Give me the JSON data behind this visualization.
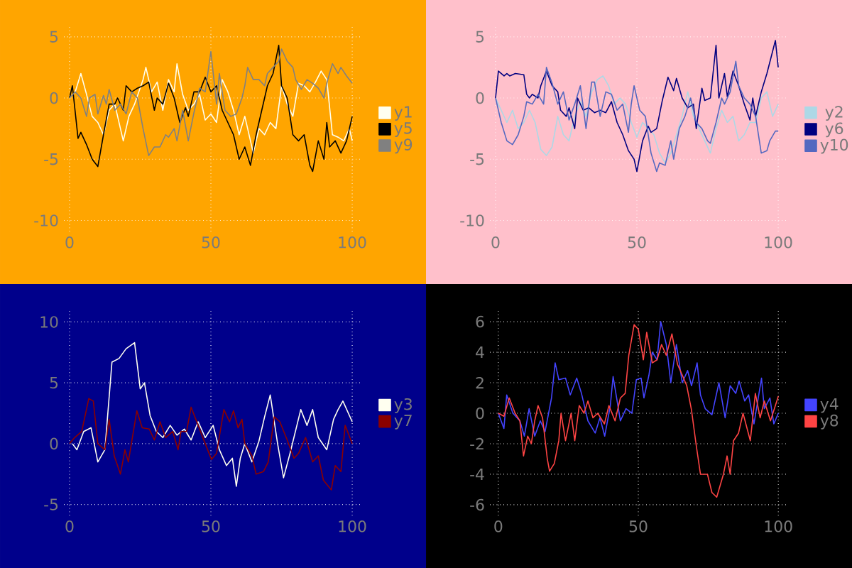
{
  "chart_data": [
    {
      "type": "line",
      "xlim": [
        -2,
        103.5
      ],
      "ylim": [
        -10.9,
        5.8
      ],
      "xticks": [
        0,
        50,
        100
      ],
      "yticks": [
        -10,
        -5,
        0,
        5
      ],
      "grid": true,
      "legend": "right",
      "series": [
        {
          "name": "y1",
          "color": "#fffff0",
          "x": [
            0,
            2,
            4,
            6,
            8,
            10,
            12,
            14,
            16,
            19,
            21,
            23,
            26,
            27,
            29,
            31,
            33,
            35,
            37,
            38,
            40,
            42,
            44,
            46,
            48,
            50,
            52,
            54,
            56,
            58,
            60,
            62,
            65,
            67,
            69,
            71,
            73,
            75,
            77,
            79,
            81,
            83,
            85,
            87,
            89,
            91,
            93,
            95,
            97,
            99,
            100
          ],
          "values": [
            0,
            0.5,
            2,
            0.3,
            -1.5,
            -2,
            -3,
            -1,
            -0.5,
            -3.5,
            -1.5,
            -0.5,
            1.5,
            2.5,
            0.5,
            1.3,
            -1,
            1.5,
            0.5,
            2.8,
            0.3,
            -1,
            -0.5,
            0.3,
            -1.8,
            -1.3,
            -2,
            1.5,
            0.5,
            -1,
            -3,
            -1.5,
            -4.5,
            -2.5,
            -3,
            -2,
            -2.5,
            1,
            -0.5,
            -1.5,
            1.2,
            1,
            0.5,
            1.3,
            2.2,
            1.5,
            -3,
            -3.2,
            -3.5,
            -2.5,
            -3.5
          ]
        },
        {
          "name": "y5",
          "color": "#000000",
          "x": [
            0,
            1,
            3,
            4,
            6,
            8,
            10,
            12,
            14,
            16,
            17,
            19,
            20,
            22,
            24,
            26,
            28,
            30,
            31,
            33,
            35,
            37,
            39,
            41,
            42,
            44,
            46,
            48,
            50,
            52,
            54,
            56,
            58,
            60,
            62,
            64,
            66,
            68,
            70,
            72,
            74,
            75,
            77,
            79,
            81,
            83,
            85,
            86,
            88,
            90,
            91,
            92,
            94,
            96,
            98,
            100
          ],
          "values": [
            0,
            1,
            -3.3,
            -2.8,
            -3.8,
            -5,
            -5.6,
            -3,
            -0.5,
            -0.5,
            0,
            -1,
            1,
            0.5,
            0.8,
            1,
            1.3,
            -1,
            0,
            -0.5,
            1.2,
            0,
            -2,
            -0.8,
            -1.5,
            0.5,
            0.5,
            1.7,
            0.5,
            1,
            -1,
            -2,
            -3,
            -5,
            -4,
            -5.5,
            -3,
            -1,
            1,
            2,
            4.3,
            1,
            0,
            -3,
            -3.5,
            -3,
            -5.5,
            -6,
            -3.5,
            -5,
            -2,
            -4,
            -3.5,
            -4.5,
            -3.5,
            -1.5
          ]
        },
        {
          "name": "y9",
          "color": "#808080",
          "x": [
            0,
            2,
            4,
            6,
            7,
            9,
            10,
            12,
            13,
            14,
            16,
            18,
            20,
            22,
            24,
            26,
            28,
            30,
            32,
            34,
            35,
            37,
            38,
            40,
            42,
            44,
            46,
            48,
            50,
            52,
            53,
            55,
            57,
            59,
            61,
            62,
            63,
            65,
            67,
            69,
            70,
            72,
            74,
            75,
            77,
            79,
            80,
            82,
            84,
            86,
            88,
            90,
            91,
            93,
            95,
            96,
            98,
            100
          ],
          "values": [
            0,
            0.5,
            0,
            -1.5,
            0,
            0.3,
            -1.3,
            0.2,
            -0.5,
            0.7,
            -1,
            -0.5,
            -1.3,
            0.5,
            0,
            -2.5,
            -4.7,
            -4,
            -4,
            -3,
            -3.2,
            -2.5,
            -3.5,
            -1,
            -3.5,
            -1.2,
            0.8,
            0.5,
            3.8,
            -0.5,
            2,
            -1,
            -1.5,
            -1.3,
            0,
            1,
            2.5,
            1.5,
            1.5,
            1,
            2,
            2.5,
            3,
            4,
            3,
            2.5,
            1.5,
            0.7,
            1.5,
            1.2,
            0.8,
            0,
            1.2,
            2.8,
            2,
            2.5,
            1.8,
            1.2
          ]
        }
      ]
    },
    {
      "type": "line",
      "xlim": [
        -2,
        103.5
      ],
      "ylim": [
        -10.9,
        5.8
      ],
      "xticks": [
        0,
        50,
        100
      ],
      "yticks": [
        -10,
        -5,
        0,
        5
      ],
      "grid": true,
      "legend": "right",
      "series": [
        {
          "name": "y2",
          "color": "#add8e6",
          "x": [
            0,
            2,
            4,
            6,
            8,
            10,
            12,
            14,
            16,
            18,
            20,
            22,
            24,
            26,
            28,
            30,
            32,
            34,
            36,
            38,
            40,
            42,
            44,
            46,
            48,
            50,
            52,
            54,
            56,
            58,
            60,
            62,
            64,
            66,
            68,
            70,
            72,
            74,
            76,
            78,
            80,
            82,
            84,
            86,
            88,
            90,
            92,
            94,
            96,
            98,
            100
          ],
          "values": [
            0,
            -1,
            -2,
            -1,
            -2.5,
            -2,
            -1,
            -2,
            -4.2,
            -4.7,
            -4,
            -1.5,
            -3,
            -3.5,
            -1.5,
            -0.3,
            -1.5,
            0.5,
            1.5,
            1.8,
            1,
            -0.5,
            0,
            -0.5,
            -2,
            -3.2,
            -2,
            -2.5,
            -3,
            -4.5,
            -5.3,
            -4.5,
            -3,
            -1.5,
            0.5,
            -1.5,
            -2.5,
            -3.5,
            -4.5,
            -2.5,
            -1,
            -2,
            -1.5,
            -3.5,
            -3,
            -2,
            -2,
            0,
            0.5,
            -1.5,
            -0.5
          ]
        },
        {
          "name": "y6",
          "color": "#000080",
          "x": [
            0,
            1,
            3,
            4,
            5,
            7,
            10,
            11,
            12,
            13,
            15,
            16,
            18,
            20,
            22,
            23,
            25,
            26,
            28,
            29,
            31,
            33,
            35,
            37,
            39,
            41,
            43,
            45,
            47,
            49,
            50,
            52,
            54,
            55,
            57,
            59,
            61,
            63,
            64,
            66,
            68,
            70,
            71,
            73,
            74,
            76,
            78,
            79,
            81,
            82,
            84,
            86,
            88,
            90,
            91,
            92,
            94,
            96,
            99,
            100
          ],
          "values": [
            0,
            2.2,
            1.8,
            2,
            1.8,
            2,
            1.9,
            0.3,
            0,
            0.3,
            0,
            1,
            2.2,
            1,
            0.5,
            -1,
            -1.5,
            -0.8,
            -2.5,
            0,
            -1,
            -0.8,
            -1.2,
            -1,
            -1.2,
            -0.3,
            -2,
            -3,
            -4.3,
            -5,
            -6,
            -3.5,
            -2.3,
            -2.8,
            -2.5,
            -0.2,
            1.7,
            0.6,
            1.6,
            0,
            -0.8,
            -0.5,
            -2.5,
            0.8,
            -0.2,
            0,
            4.3,
            0,
            2,
            0.1,
            2.2,
            1,
            -0.5,
            -1.8,
            0,
            -1.5,
            0.5,
            2,
            4.7,
            2.5
          ]
        },
        {
          "name": "y10",
          "color": "#5468c0",
          "x": [
            0,
            2,
            4,
            6,
            8,
            10,
            11,
            13,
            15,
            17,
            18,
            20,
            22,
            24,
            26,
            28,
            30,
            32,
            34,
            35,
            37,
            39,
            41,
            43,
            45,
            47,
            48,
            49,
            51,
            53,
            55,
            57,
            58,
            60,
            62,
            63,
            65,
            67,
            69,
            71,
            73,
            75,
            76,
            78,
            80,
            81,
            83,
            85,
            86,
            88,
            90,
            92,
            94,
            96,
            97,
            99,
            100
          ],
          "values": [
            0,
            -2,
            -3.5,
            -3.8,
            -3,
            -1.5,
            -0.3,
            -0.5,
            0.3,
            -0.5,
            2.5,
            1.2,
            -0.5,
            0.5,
            -1.8,
            -0.5,
            1,
            -2.5,
            1.3,
            1.3,
            -1.5,
            0.5,
            0.3,
            -1,
            -0.5,
            -2.8,
            -0.5,
            1,
            -1,
            -1.5,
            -4.5,
            -6,
            -5.3,
            -5.5,
            -3.5,
            -5,
            -2.5,
            -1.5,
            0,
            -2,
            -2.5,
            -3.5,
            -3.7,
            -2,
            0,
            -0.5,
            0.5,
            3,
            1,
            0,
            -0.5,
            -1.5,
            -4.5,
            -4.3,
            -3.5,
            -2.7,
            -2.7
          ]
        }
      ]
    },
    {
      "type": "line",
      "xlim": [
        -2,
        103.5
      ],
      "ylim": [
        -5.9,
        10.9
      ],
      "xticks": [
        0,
        50,
        100
      ],
      "yticks": [
        -5,
        0,
        5,
        10
      ],
      "grid": true,
      "legend": "right",
      "series": [
        {
          "name": "y3",
          "color": "#fffff0",
          "x": [
            1,
            2.6,
            5,
            7.6,
            10,
            12.5,
            15,
            17.5,
            20,
            23,
            25,
            26.5,
            28.5,
            30.7,
            33,
            35.6,
            38,
            40.6,
            43,
            45.5,
            48,
            50.8,
            53,
            55.5,
            57.6,
            59,
            60.4,
            62,
            64.5,
            67,
            69,
            71,
            73.6,
            75.7,
            78,
            81.8,
            84,
            86,
            88,
            91,
            93.4,
            95,
            96.7,
            100
          ],
          "values": [
            0,
            -0.5,
            1,
            1.3,
            -1.5,
            -0.5,
            6.7,
            7,
            7.8,
            8.3,
            4.5,
            5,
            2.3,
            1,
            0.5,
            1.5,
            0.7,
            1.2,
            0.3,
            1.8,
            0.5,
            1.5,
            -0.5,
            -1.8,
            -1.2,
            -3.5,
            -1.2,
            0,
            -1.5,
            0.2,
            2.2,
            4,
            0,
            -2.8,
            -0.8,
            2.8,
            1.5,
            2.8,
            0.5,
            -0.5,
            2,
            2.8,
            3.5,
            1.8
          ]
        },
        {
          "name": "y7",
          "color": "#8b0000",
          "x": [
            0,
            1.8,
            4.3,
            6.8,
            8.4,
            10,
            12.5,
            14,
            15.8,
            18,
            19.6,
            20.8,
            23.8,
            25.7,
            28.2,
            30,
            32,
            34,
            36.5,
            38.4,
            39.4,
            41.4,
            43,
            45.5,
            48,
            50.2,
            52,
            54.6,
            56.6,
            58,
            59.6,
            61,
            62,
            64.5,
            66,
            68.6,
            70.3,
            72.4,
            74.4,
            77,
            79.4,
            81,
            83.5,
            86,
            88,
            89.8,
            92.6,
            94,
            96,
            97.5,
            100
          ],
          "values": [
            0,
            0.5,
            1,
            3.7,
            3.5,
            0,
            -0.5,
            2,
            -1,
            -2.5,
            -0.5,
            -1.5,
            2.7,
            1.3,
            1.2,
            0.3,
            1.8,
            0.5,
            1,
            -0.5,
            1,
            1,
            3,
            1.5,
            0,
            -1.3,
            -0.8,
            2.8,
            1.8,
            2.7,
            1.3,
            2,
            0,
            -1,
            -2.5,
            -2.3,
            -1.5,
            2.2,
            1.8,
            0.3,
            -1.2,
            -0.8,
            0.5,
            -1.5,
            -1,
            -3,
            -3.8,
            -1.8,
            -2.3,
            1.5,
            0
          ]
        }
      ]
    },
    {
      "type": "line",
      "xlim": [
        -3,
        103.5
      ],
      "ylim": [
        -6.7,
        6.7
      ],
      "xticks": [
        0,
        50,
        100
      ],
      "yticks": [
        -6,
        -4,
        -2,
        0,
        2,
        4,
        6
      ],
      "grid": true,
      "legend": "right",
      "series": [
        {
          "name": "y4",
          "color": "#4444ff",
          "x": [
            0,
            2,
            3,
            5.2,
            7.7,
            9.3,
            11,
            13,
            15,
            16.7,
            19,
            20.3,
            21.6,
            24,
            25.7,
            28,
            29.7,
            32,
            34.6,
            36.3,
            38,
            40,
            41,
            43.6,
            45.6,
            47.7,
            49.3,
            51,
            52,
            53.8,
            55,
            56.7,
            58,
            60,
            61.6,
            63.6,
            65.7,
            67.6,
            69,
            71,
            72.2,
            73.9,
            76.3,
            78.8,
            81,
            82.8,
            84.8,
            86,
            88,
            89.4,
            91.3,
            94,
            95,
            97,
            98.4,
            100
          ],
          "values": [
            0,
            -1,
            1.2,
            0,
            -0.5,
            -1.5,
            0.3,
            -1.5,
            -0.5,
            -1.2,
            1,
            3.3,
            2.2,
            2.3,
            1.2,
            2.3,
            1.3,
            -0.5,
            -1.3,
            -0.3,
            -1.5,
            0.5,
            2.4,
            -0.5,
            0.3,
            0,
            2.2,
            2.3,
            1,
            2.5,
            4,
            3.5,
            6,
            4.5,
            2,
            4.5,
            2,
            2.8,
            1.8,
            3.3,
            1.2,
            0.3,
            -0.1,
            2,
            -0.3,
            1.8,
            1.3,
            2.1,
            0.8,
            1.2,
            -0.7,
            2.3,
            0.3,
            1,
            -0.7,
            0
          ]
        },
        {
          "name": "y8",
          "color": "#ff4444",
          "x": [
            0,
            2,
            3.9,
            6,
            7.7,
            9,
            10.5,
            11.8,
            13,
            14.2,
            15.8,
            17.5,
            18.3,
            20,
            21.6,
            22.4,
            24,
            26,
            27.3,
            28.9,
            30.6,
            32,
            33.8,
            35.5,
            37.9,
            39.5,
            41.7,
            43.6,
            45.3,
            46.6,
            48.5,
            50,
            51.8,
            53,
            55,
            56.7,
            58.3,
            60,
            62,
            64,
            65.7,
            67.3,
            69,
            70.6,
            72.2,
            74.7,
            76.3,
            78,
            80.4,
            81.7,
            82.8,
            84,
            85.8,
            87.4,
            90,
            91.8,
            93.5,
            95,
            97.2,
            100
          ],
          "values": [
            0,
            -0.2,
            1,
            0,
            -0.5,
            -2.8,
            -1.5,
            -2,
            -0.5,
            0.5,
            -0.3,
            -3,
            -3.8,
            -3.3,
            -1.8,
            0,
            -1.8,
            0,
            -1.8,
            0.5,
            0,
            0.8,
            -0.3,
            0,
            -0.7,
            0.5,
            -0.5,
            1,
            1.3,
            3.8,
            5.8,
            5.5,
            3.5,
            5.3,
            3.3,
            3.5,
            4.5,
            3.8,
            5.2,
            3.2,
            2.5,
            1.8,
            0.2,
            -2,
            -4,
            -4,
            -5.2,
            -5.5,
            -4,
            -2.8,
            -4,
            -1.8,
            -1.3,
            0,
            -1.8,
            1.3,
            -0.3,
            0.8,
            -0.5,
            1.1
          ]
        }
      ]
    }
  ]
}
